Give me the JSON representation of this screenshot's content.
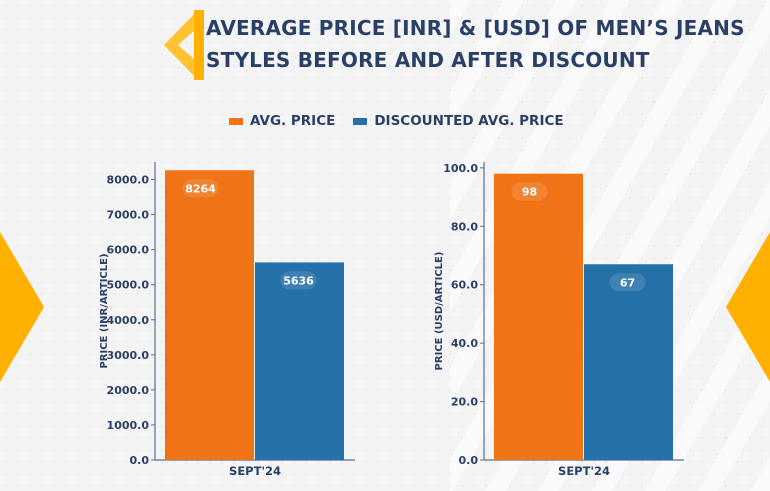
{
  "title": "AVERAGE PRICE [INR] & [USD] OF MEN’S JEANS STYLES BEFORE AND AFTER DISCOUNT",
  "colors": {
    "avg": "#f07416",
    "discounted": "#2470a8",
    "text": "#2a3f66",
    "accent": "#ffb000"
  },
  "legend": [
    {
      "label": "AVG. PRICE",
      "color": "#f07416"
    },
    {
      "label": "DISCOUNTED AVG. PRICE",
      "color": "#2470a8"
    }
  ],
  "chart_data": [
    {
      "type": "bar",
      "categories": [
        "SEPT'24"
      ],
      "series": [
        {
          "name": "AVG. PRICE",
          "values": [
            8264
          ]
        },
        {
          "name": "DISCOUNTED AVG. PRICE",
          "values": [
            5636
          ]
        }
      ],
      "data_labels": [
        "8264",
        "5636"
      ],
      "ylabel": "PRICE (INR/ARTICLE)",
      "ylim": [
        0,
        8500
      ],
      "yticks": [
        0,
        1000,
        2000,
        3000,
        4000,
        5000,
        6000,
        7000,
        8000
      ],
      "ytick_labels": [
        "0.0",
        "1000.0",
        "2000.0",
        "3000.0",
        "4000.0",
        "5000.0",
        "6000.0",
        "7000.0",
        "8000.0"
      ]
    },
    {
      "type": "bar",
      "categories": [
        "SEPT'24"
      ],
      "series": [
        {
          "name": "AVG. PRICE",
          "values": [
            98
          ]
        },
        {
          "name": "DISCOUNTED AVG. PRICE",
          "values": [
            67
          ]
        }
      ],
      "data_labels": [
        "98",
        "67"
      ],
      "ylabel": "PRICE (USD/ARTICLE)",
      "ylim": [
        0,
        102
      ],
      "yticks": [
        0,
        20,
        40,
        60,
        80,
        100
      ],
      "ytick_labels": [
        "0.0",
        "20.0",
        "40.0",
        "60.0",
        "80.0",
        "100.0"
      ]
    }
  ]
}
